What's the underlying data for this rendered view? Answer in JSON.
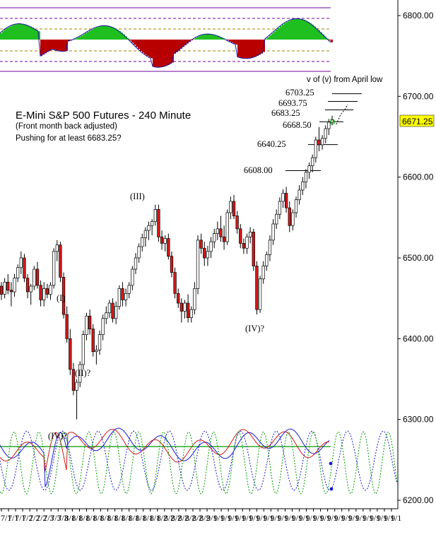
{
  "chart_data": {
    "type": "candlestick",
    "title": "E-Mini S&P 500 Futures - 240 Minute",
    "subtitle": "(Front month back adjusted)",
    "annotation": "Pushing for at least 6683.25?",
    "target_note": "v of (v) from April low",
    "price_axis": {
      "min": 6200,
      "max": 6800,
      "ticks": [
        "6200.00",
        "6300.00",
        "6400.00",
        "6500.00",
        "6600.00",
        "6700.00",
        "6800.00"
      ],
      "side": "right"
    },
    "last_price": {
      "value": 6671.25,
      "label": "6671.25",
      "color": "#ffff00"
    },
    "levels": [
      {
        "label": "6703.25",
        "value": 6703.25
      },
      {
        "label": "6693.75",
        "value": 6693.75
      },
      {
        "label": "6683.25",
        "value": 6683.25
      },
      {
        "label": "6668.50",
        "value": 6668.5
      },
      {
        "label": "6640.25",
        "value": 6640.25
      },
      {
        "label": "6608.00",
        "value": 6608.0
      }
    ],
    "wave_labels": [
      {
        "label": "(I)",
        "value": 6450
      },
      {
        "label": "(II)?",
        "value": 6365
      },
      {
        "label": "(III)",
        "value": 6570
      },
      {
        "label": "(IV)?",
        "value": 6413
      },
      {
        "label": "(IV)?",
        "value": 6280
      }
    ],
    "date_ticks": [
      "7/1",
      "7/1",
      "7/1",
      "7/2",
      "7/2",
      "7/2",
      "7/3",
      "7/3",
      "7/3",
      "8/1",
      "8/1",
      "8/1",
      "8/1",
      "8/1",
      "8/1",
      "8/1",
      "8/1",
      "8/1",
      "8/1",
      "8/1",
      "8/1",
      "8/1",
      "8/2",
      "8/2",
      "8/2",
      "8/2",
      "8/2",
      "8/2",
      "8/2",
      "9/1",
      "9/1",
      "9/1",
      "9/1",
      "9/1",
      "9/1",
      "9/1",
      "9/1",
      "9/1",
      "9/1",
      "9/1",
      "9/1",
      "9/1",
      "9/1",
      "9/1",
      "9/1",
      "9/1",
      "9/1",
      "9/1",
      "9/1",
      "9/1",
      "9/1",
      "9/1",
      "9/1",
      "9/1",
      "9/1",
      "9/1"
    ],
    "candles": [
      [
        6465,
        6470,
        6448,
        6455
      ],
      [
        6455,
        6475,
        6450,
        6470
      ],
      [
        6470,
        6480,
        6455,
        6460
      ],
      [
        6460,
        6470,
        6440,
        6458
      ],
      [
        6458,
        6480,
        6452,
        6475
      ],
      [
        6475,
        6492,
        6470,
        6488
      ],
      [
        6488,
        6508,
        6480,
        6500
      ],
      [
        6500,
        6505,
        6470,
        6475
      ],
      [
        6475,
        6480,
        6450,
        6458
      ],
      [
        6458,
        6468,
        6442,
        6465
      ],
      [
        6465,
        6490,
        6460,
        6486
      ],
      [
        6486,
        6495,
        6462,
        6466
      ],
      [
        6466,
        6472,
        6440,
        6448
      ],
      [
        6448,
        6470,
        6440,
        6462
      ],
      [
        6462,
        6468,
        6450,
        6455
      ],
      [
        6455,
        6470,
        6448,
        6466
      ],
      [
        6466,
        6512,
        6462,
        6508
      ],
      [
        6508,
        6522,
        6496,
        6516
      ],
      [
        6516,
        6520,
        6470,
        6476
      ],
      [
        6476,
        6482,
        6425,
        6430
      ],
      [
        6430,
        6440,
        6395,
        6400
      ],
      [
        6400,
        6412,
        6355,
        6362
      ],
      [
        6362,
        6370,
        6330,
        6336
      ],
      [
        6336,
        6350,
        6300,
        6346
      ],
      [
        6346,
        6372,
        6340,
        6368
      ],
      [
        6368,
        6410,
        6362,
        6405
      ],
      [
        6405,
        6432,
        6398,
        6428
      ],
      [
        6428,
        6436,
        6405,
        6412
      ],
      [
        6412,
        6418,
        6378,
        6384
      ],
      [
        6384,
        6392,
        6368,
        6386
      ],
      [
        6386,
        6410,
        6380,
        6405
      ],
      [
        6405,
        6430,
        6398,
        6425
      ],
      [
        6425,
        6440,
        6418,
        6432
      ],
      [
        6432,
        6448,
        6426,
        6444
      ],
      [
        6444,
        6450,
        6420,
        6425
      ],
      [
        6425,
        6446,
        6418,
        6440
      ],
      [
        6440,
        6466,
        6436,
        6462
      ],
      [
        6462,
        6470,
        6440,
        6448
      ],
      [
        6448,
        6462,
        6440,
        6456
      ],
      [
        6456,
        6470,
        6450,
        6466
      ],
      [
        6466,
        6490,
        6460,
        6486
      ],
      [
        6486,
        6506,
        6480,
        6500
      ],
      [
        6500,
        6518,
        6494,
        6514
      ],
      [
        6514,
        6530,
        6508,
        6525
      ],
      [
        6525,
        6538,
        6514,
        6534
      ],
      [
        6534,
        6545,
        6522,
        6540
      ],
      [
        6540,
        6548,
        6528,
        6545
      ],
      [
        6545,
        6566,
        6540,
        6560
      ],
      [
        6560,
        6566,
        6520,
        6526
      ],
      [
        6526,
        6534,
        6510,
        6518
      ],
      [
        6518,
        6528,
        6508,
        6524
      ],
      [
        6524,
        6530,
        6498,
        6502
      ],
      [
        6502,
        6508,
        6476,
        6482
      ],
      [
        6482,
        6488,
        6450,
        6456
      ],
      [
        6456,
        6462,
        6438,
        6444
      ],
      [
        6444,
        6450,
        6420,
        6434
      ],
      [
        6434,
        6448,
        6425,
        6444
      ],
      [
        6444,
        6455,
        6420,
        6426
      ],
      [
        6426,
        6440,
        6420,
        6436
      ],
      [
        6436,
        6470,
        6430,
        6462
      ],
      [
        6462,
        6528,
        6455,
        6522
      ],
      [
        6522,
        6530,
        6505,
        6512
      ],
      [
        6512,
        6520,
        6490,
        6500
      ],
      [
        6500,
        6515,
        6490,
        6508
      ],
      [
        6508,
        6526,
        6500,
        6520
      ],
      [
        6520,
        6536,
        6512,
        6530
      ],
      [
        6530,
        6545,
        6522,
        6536
      ],
      [
        6536,
        6552,
        6520,
        6526
      ],
      [
        6526,
        6540,
        6510,
        6520
      ],
      [
        6520,
        6560,
        6516,
        6556
      ],
      [
        6556,
        6576,
        6548,
        6570
      ],
      [
        6570,
        6578,
        6548,
        6552
      ],
      [
        6552,
        6558,
        6530,
        6536
      ],
      [
        6536,
        6542,
        6512,
        6518
      ],
      [
        6518,
        6524,
        6505,
        6512
      ],
      [
        6512,
        6530,
        6505,
        6526
      ],
      [
        6526,
        6538,
        6518,
        6532
      ],
      [
        6532,
        6536,
        6484,
        6490
      ],
      [
        6490,
        6496,
        6430,
        6436
      ],
      [
        6436,
        6478,
        6432,
        6474
      ],
      [
        6474,
        6496,
        6468,
        6490
      ],
      [
        6490,
        6508,
        6484,
        6504
      ],
      [
        6504,
        6528,
        6496,
        6522
      ],
      [
        6522,
        6548,
        6516,
        6542
      ],
      [
        6542,
        6560,
        6536,
        6554
      ],
      [
        6554,
        6575,
        6548,
        6570
      ],
      [
        6570,
        6585,
        6562,
        6580
      ],
      [
        6580,
        6588,
        6556,
        6562
      ],
      [
        6562,
        6570,
        6532,
        6540
      ],
      [
        6540,
        6560,
        6534,
        6556
      ],
      [
        6556,
        6576,
        6550,
        6572
      ],
      [
        6572,
        6590,
        6566,
        6584
      ],
      [
        6584,
        6600,
        6578,
        6594
      ],
      [
        6594,
        6610,
        6586,
        6606
      ],
      [
        6606,
        6618,
        6598,
        6614
      ],
      [
        6614,
        6628,
        6606,
        6624
      ],
      [
        6624,
        6650,
        6618,
        6646
      ],
      [
        6646,
        6662,
        6632,
        6640
      ],
      [
        6640,
        6652,
        6634,
        6648
      ],
      [
        6648,
        6664,
        6642,
        6660
      ],
      [
        6660,
        6672,
        6652,
        6668
      ],
      [
        6668,
        6676,
        6664,
        6671.25
      ]
    ]
  }
}
